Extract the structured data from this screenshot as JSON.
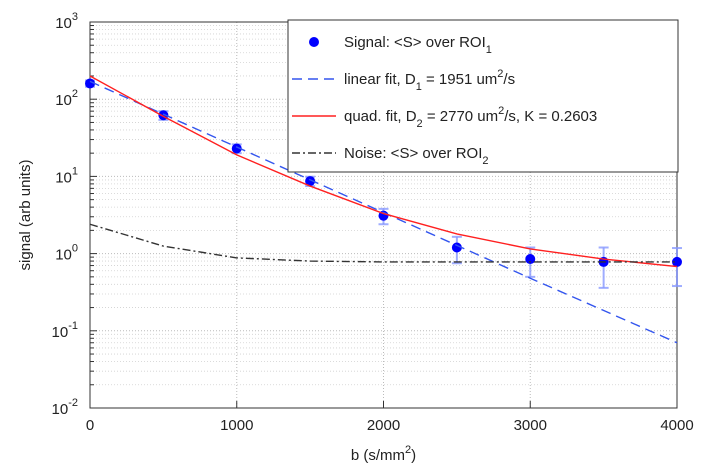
{
  "chart_data": {
    "type": "line",
    "ylog": true,
    "grid": true,
    "legend": "top-right",
    "ylabel": "signal (arb units)",
    "xlabel": [
      "b (s/mm",
      "2",
      ")"
    ],
    "xlim": [
      0,
      4000
    ],
    "xticks": [
      0,
      1000,
      2000,
      3000,
      4000
    ],
    "ylim": [
      0.01,
      1000
    ],
    "yticks": [
      {
        "value": 0.01,
        "label": [
          "10",
          "-2"
        ]
      },
      {
        "value": 0.1,
        "label": [
          "10",
          "-1"
        ]
      },
      {
        "value": 1,
        "label": [
          "10",
          "0"
        ]
      },
      {
        "value": 10,
        "label": [
          "10",
          "1"
        ]
      },
      {
        "value": 100,
        "label": [
          "10",
          "2"
        ]
      },
      {
        "value": 1000,
        "label": [
          "10",
          "3"
        ]
      }
    ],
    "series": [
      {
        "name": [
          {
            "text": "Signal: <S> over ROI"
          },
          {
            "text": "1",
            "sub": true
          }
        ],
        "color": "#0000ff",
        "style": "marker",
        "x": [
          0,
          500,
          1000,
          1500,
          2000,
          2500,
          3000,
          3500,
          4000
        ],
        "values": [
          160,
          62,
          23,
          8.7,
          3.1,
          1.2,
          0.85,
          0.78,
          0.78
        ],
        "errors": [
          15,
          8,
          3,
          1.2,
          0.7,
          0.45,
          0.35,
          0.42,
          0.4
        ]
      },
      {
        "name": [
          {
            "text": "linear fit, D"
          },
          {
            "text": "1",
            "sub": true
          },
          {
            "text": " = 1951 um"
          },
          {
            "text": "2",
            "sup": true
          },
          {
            "text": "/s"
          }
        ],
        "color": "#3355ee",
        "style": "dashed",
        "x": [
          0,
          1000,
          2000,
          3000,
          4000
        ],
        "values": [
          170,
          24,
          3.4,
          0.48,
          0.07
        ]
      },
      {
        "name": [
          {
            "text": "quad. fit, D"
          },
          {
            "text": "2",
            "sub": true
          },
          {
            "text": " = 2770 um"
          },
          {
            "text": "2",
            "sup": true
          },
          {
            "text": "/s, K = 0.2603"
          }
        ],
        "color": "#ff2020",
        "style": "solid",
        "x": [
          0,
          500,
          1000,
          1500,
          2000,
          2500,
          3000,
          3500,
          4000
        ],
        "values": [
          200,
          60,
          19,
          7.5,
          3.3,
          1.8,
          1.15,
          0.85,
          0.68
        ]
      },
      {
        "name": [
          {
            "text": "Noise: <S> over ROI"
          },
          {
            "text": "2",
            "sub": true
          }
        ],
        "color": "#333333",
        "style": "dashdot",
        "x": [
          0,
          500,
          1000,
          1500,
          2000,
          2500,
          3000,
          3500,
          4000
        ],
        "values": [
          2.4,
          1.25,
          0.88,
          0.8,
          0.78,
          0.78,
          0.78,
          0.78,
          0.78
        ]
      }
    ]
  }
}
